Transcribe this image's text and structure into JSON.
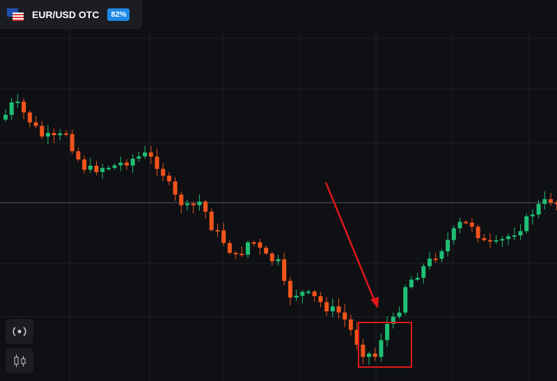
{
  "header": {
    "pair": "EUR/USD OTC",
    "payout": "82%"
  }
}
